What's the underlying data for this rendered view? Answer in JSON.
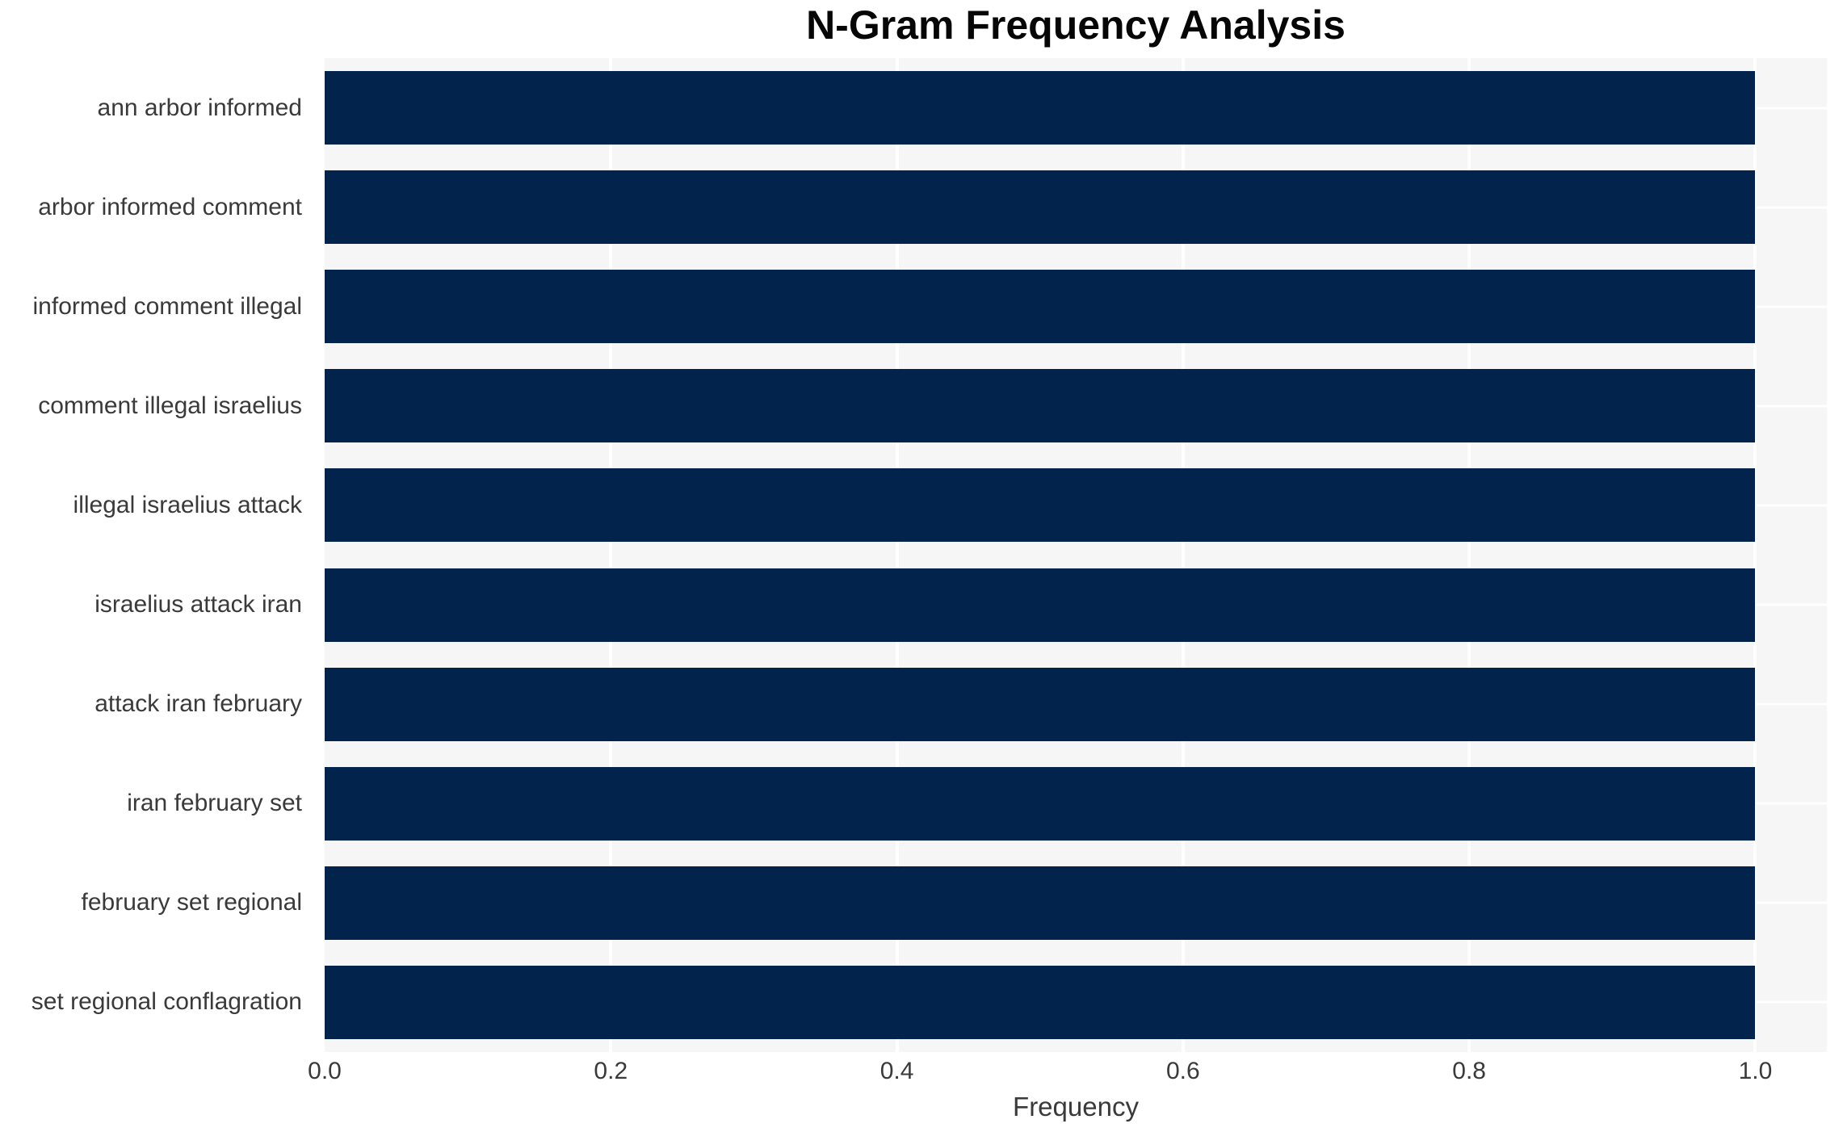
{
  "chart_data": {
    "type": "bar",
    "orientation": "horizontal",
    "title": "N-Gram Frequency Analysis",
    "xlabel": "Frequency",
    "ylabel": "",
    "categories": [
      "ann arbor informed",
      "arbor informed comment",
      "informed comment illegal",
      "comment illegal israelius",
      "illegal israelius attack",
      "israelius attack iran",
      "attack iran february",
      "iran february set",
      "february set regional",
      "set regional conflagration"
    ],
    "values": [
      1.0,
      1.0,
      1.0,
      1.0,
      1.0,
      1.0,
      1.0,
      1.0,
      1.0,
      1.0
    ],
    "xlim": [
      0,
      1.05
    ],
    "x_tick_labels": [
      "0.0",
      "0.2",
      "0.4",
      "0.6",
      "0.8",
      "1.0"
    ],
    "grid": true,
    "legend": null,
    "colors": {
      "bar": "#02234c",
      "plot_background": "#f6f6f6",
      "gridline": "#ffffff",
      "tick_text": "#3a3a3a",
      "title_text": "#060606"
    }
  }
}
